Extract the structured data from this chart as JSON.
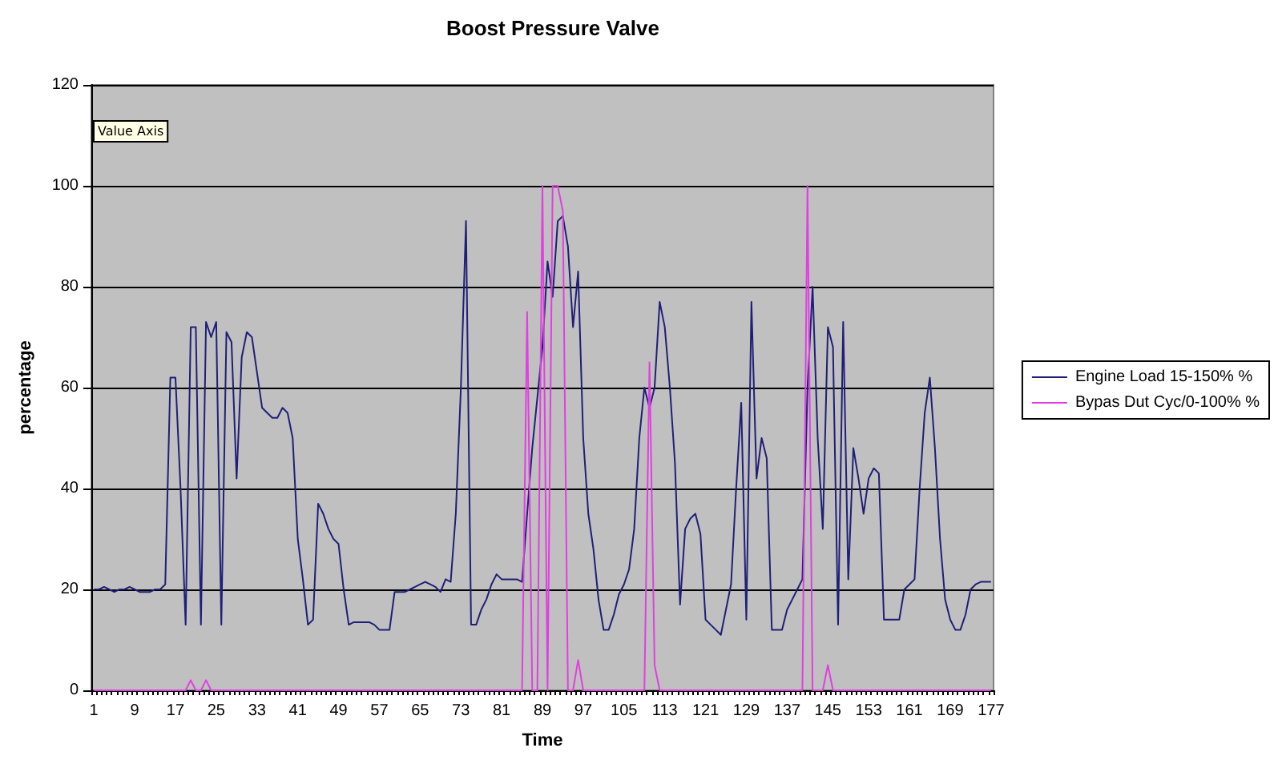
{
  "chart_data": {
    "type": "line",
    "title": "Boost Pressure Valve",
    "xlabel": "Time",
    "ylabel": "percentage",
    "annotations": [
      "Value Axis"
    ],
    "categories": [
      "1",
      null,
      null,
      null,
      null,
      null,
      null,
      null,
      "9",
      null,
      null,
      null,
      null,
      null,
      null,
      null,
      "17",
      null,
      null,
      null,
      null,
      null,
      null,
      null,
      "25",
      null,
      null,
      null,
      null,
      null,
      null,
      null,
      "33",
      null,
      null,
      null,
      null,
      null,
      null,
      null,
      "41",
      null,
      null,
      null,
      null,
      null,
      null,
      null,
      "49",
      null,
      null,
      null,
      null,
      null,
      null,
      null,
      "57",
      null,
      null,
      null,
      null,
      null,
      null,
      null,
      "65",
      null,
      null,
      null,
      null,
      null,
      null,
      null,
      "73",
      null,
      null,
      null,
      null,
      null,
      null,
      null,
      "81",
      null,
      null,
      null,
      null,
      null,
      null,
      null,
      "89",
      null,
      null,
      null,
      null,
      null,
      null,
      null,
      "97",
      null,
      null,
      null,
      null,
      null,
      null,
      null,
      "105",
      null,
      null,
      null,
      null,
      null,
      null,
      null,
      "113",
      null,
      null,
      null,
      null,
      null,
      null,
      null,
      "121",
      null,
      null,
      null,
      null,
      null,
      null,
      null,
      "129",
      null,
      null,
      null,
      null,
      null,
      null,
      null,
      "137",
      null,
      null,
      null,
      null,
      null,
      null,
      null,
      "145",
      null,
      null,
      null,
      null,
      null,
      null,
      null,
      "153",
      null,
      null,
      null,
      null,
      null,
      null,
      null,
      "161",
      null,
      null,
      null,
      null,
      null,
      null,
      null,
      "169",
      null,
      null,
      null,
      null,
      null,
      null,
      null,
      "177"
    ],
    "series": [
      {
        "name": "Engine Load 15-150% %",
        "color": "#1f1f78",
        "values": [
          20,
          20,
          20.5,
          20,
          19.5,
          20,
          20,
          20.5,
          20,
          19.5,
          19.5,
          19.5,
          20,
          20,
          21,
          62,
          62,
          40,
          13,
          72,
          72,
          13,
          73,
          70,
          73,
          13,
          71,
          69,
          42,
          66,
          71,
          70,
          63,
          56,
          55,
          54,
          54,
          56,
          55,
          50,
          30,
          22,
          13,
          14,
          37,
          35,
          32,
          30,
          29,
          20,
          13,
          13.5,
          13.5,
          13.5,
          13.5,
          13,
          12,
          12,
          12,
          19.5,
          19.5,
          19.5,
          20,
          20.5,
          21,
          21.5,
          21,
          20.5,
          19.5,
          22,
          21.5,
          35,
          60,
          93,
          13,
          13,
          16,
          18,
          21,
          23,
          22,
          22,
          22,
          22,
          21.5,
          35,
          48,
          58,
          68,
          85,
          78,
          93,
          94,
          88,
          72,
          83,
          50,
          35,
          28,
          18,
          12,
          12,
          15,
          19,
          21,
          24,
          32,
          50,
          60,
          56,
          60,
          77,
          72,
          60,
          45,
          17,
          32,
          34,
          35,
          31,
          14,
          13,
          12,
          11,
          16,
          21,
          40,
          57,
          14,
          77,
          42,
          50,
          46,
          12,
          12,
          12,
          16,
          18,
          20,
          22,
          60,
          80,
          50,
          32,
          72,
          68,
          13,
          73,
          22,
          48,
          42,
          35,
          42,
          44,
          43,
          14,
          14,
          14,
          14,
          20,
          21,
          22,
          40,
          55,
          62,
          48,
          30,
          18,
          14,
          12,
          12,
          15,
          20,
          21,
          21.5,
          21.5,
          21.5
        ]
      },
      {
        "name": "Bypas Dut Cyc/0-100% %",
        "color": "#e040e0",
        "values": [
          0,
          0,
          0,
          0,
          0,
          0,
          0,
          0,
          0,
          0,
          0,
          0,
          0,
          0,
          0,
          0,
          0,
          0,
          0,
          2,
          0,
          0,
          2,
          0,
          0,
          0,
          0,
          0,
          0,
          0,
          0,
          0,
          0,
          0,
          0,
          0,
          0,
          0,
          0,
          0,
          0,
          0,
          0,
          0,
          0,
          0,
          0,
          0,
          0,
          0,
          0,
          0,
          0,
          0,
          0,
          0,
          0,
          0,
          0,
          0,
          0,
          0,
          0,
          0,
          0,
          0,
          0,
          0,
          0,
          0,
          0,
          0,
          0,
          0,
          0,
          0,
          0,
          0,
          0,
          0,
          0,
          0,
          0,
          0,
          0,
          75,
          0,
          0,
          100,
          0,
          100,
          100,
          95,
          0,
          0,
          6,
          0,
          0,
          0,
          0,
          0,
          0,
          0,
          0,
          0,
          0,
          0,
          0,
          0,
          65,
          5,
          0,
          0,
          0,
          0,
          0,
          0,
          0,
          0,
          0,
          0,
          0,
          0,
          0,
          0,
          0,
          0,
          0,
          0,
          0,
          0,
          0,
          0,
          0,
          0,
          0,
          0,
          0,
          0,
          0,
          100,
          0,
          0,
          0,
          5,
          0,
          0,
          0,
          0,
          0,
          0,
          0,
          0,
          0,
          0,
          0,
          0,
          0,
          0,
          0,
          0,
          0,
          0,
          0,
          0,
          0,
          0,
          0,
          0,
          0,
          0,
          0,
          0,
          0,
          0,
          0,
          0
        ]
      }
    ],
    "ylim": [
      0,
      120
    ],
    "yticks": [
      0,
      20,
      40,
      60,
      80,
      100,
      120
    ],
    "grid": "y",
    "legend": "right",
    "marker": "none",
    "line_style": "solid"
  }
}
